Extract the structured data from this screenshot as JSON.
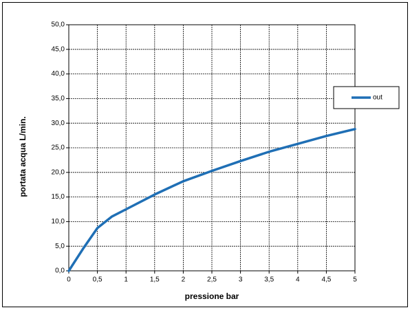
{
  "chart_data": {
    "type": "line",
    "x_label": "pressione bar",
    "y_label": "portata acqua L/min.",
    "x": [
      0,
      0.25,
      0.5,
      0.75,
      1,
      1.5,
      2,
      2.5,
      3,
      3.5,
      4,
      4.5,
      5
    ],
    "series": [
      {
        "name": "out",
        "color": "#1f6fb5",
        "values": [
          0,
          4.5,
          8.7,
          11,
          12.5,
          15.5,
          18.2,
          20.3,
          22.3,
          24.2,
          25.8,
          27.4,
          28.8
        ]
      }
    ],
    "xlim": [
      0,
      5
    ],
    "xticks": [
      0,
      {
        "value": 0.5,
        "label": "0,5"
      },
      1,
      {
        "value": 1.5,
        "label": "1,5"
      },
      2,
      {
        "value": 2.5,
        "label": "2,5"
      },
      3,
      {
        "value": 3.5,
        "label": "3,5"
      },
      4,
      {
        "value": 4.5,
        "label": "4,5"
      },
      5
    ],
    "ylim": [
      0,
      50
    ],
    "yticks": [
      {
        "value": 0,
        "label": "0,0"
      },
      {
        "value": 5,
        "label": "5,0"
      },
      {
        "value": 10,
        "label": "10,0"
      },
      {
        "value": 15,
        "label": "15,0"
      },
      {
        "value": 20,
        "label": "20,0"
      },
      {
        "value": 25,
        "label": "25,0"
      },
      {
        "value": 30,
        "label": "30,0"
      },
      {
        "value": 35,
        "label": "35,0"
      },
      {
        "value": 40,
        "label": "40,0"
      },
      {
        "value": 45,
        "label": "45,0"
      },
      {
        "value": 50,
        "label": "50,0"
      }
    ],
    "grid": true,
    "legend": "right"
  }
}
